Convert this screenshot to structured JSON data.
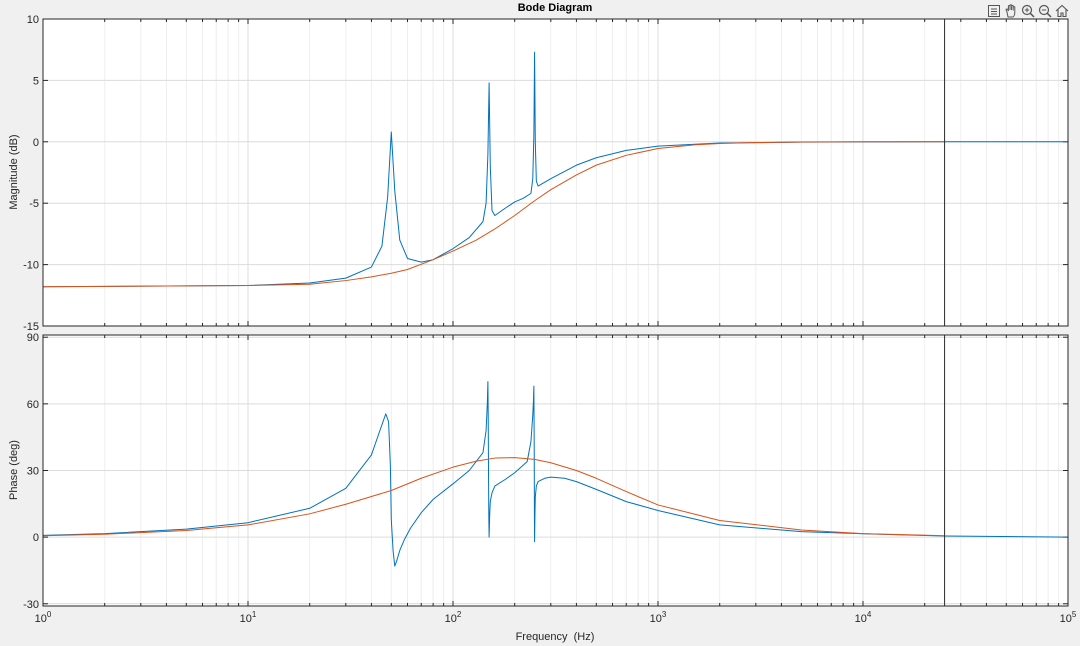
{
  "window": {
    "toolbar_icons": [
      "legend-toggle-icon",
      "pan-hand-icon",
      "zoom-in-icon",
      "zoom-out-icon",
      "home-icon"
    ]
  },
  "chart_data": [
    {
      "type": "line",
      "title": "Bode Diagram",
      "xlabel": "",
      "ylabel": "Magnitude (dB)",
      "xscale": "log",
      "xlim": [
        1,
        100000
      ],
      "ylim": [
        -15,
        10
      ],
      "yticks": [
        -15,
        -10,
        -5,
        0,
        5,
        10
      ],
      "grid": true,
      "vertical_line_x": 25000,
      "series": [
        {
          "color": "#0072bd",
          "x": [
            1,
            10,
            20,
            30,
            40,
            45,
            48,
            50,
            52,
            55,
            60,
            70,
            80,
            100,
            120,
            140,
            145,
            148,
            150,
            152,
            155,
            160,
            180,
            200,
            220,
            240,
            245,
            248,
            250,
            252,
            255,
            260,
            300,
            400,
            500,
            700,
            1000,
            2000,
            5000,
            10000,
            25000,
            100000
          ],
          "y": [
            -11.8,
            -11.7,
            -11.5,
            -11.1,
            -10.2,
            -8.5,
            -4.5,
            0.8,
            -4.0,
            -8.0,
            -9.5,
            -9.8,
            -9.6,
            -8.7,
            -7.8,
            -6.5,
            -5.0,
            -1.0,
            4.8,
            -2.0,
            -5.6,
            -6.0,
            -5.4,
            -4.9,
            -4.6,
            -4.2,
            -3.0,
            0.5,
            7.3,
            0.0,
            -3.2,
            -3.6,
            -3.0,
            -1.9,
            -1.3,
            -0.7,
            -0.35,
            -0.1,
            -0.03,
            -0.01,
            0.0,
            0.0
          ]
        },
        {
          "color": "#d95319",
          "x": [
            1,
            10,
            20,
            30,
            40,
            50,
            60,
            80,
            100,
            130,
            160,
            200,
            250,
            300,
            400,
            500,
            700,
            1000,
            1500,
            2000,
            3000,
            5000,
            10000,
            25000
          ],
          "y": [
            -11.8,
            -11.7,
            -11.6,
            -11.3,
            -11.0,
            -10.7,
            -10.4,
            -9.6,
            -8.9,
            -8.0,
            -7.1,
            -6.0,
            -4.8,
            -3.9,
            -2.7,
            -1.9,
            -1.1,
            -0.55,
            -0.25,
            -0.14,
            -0.06,
            -0.02,
            0.0,
            0.0
          ]
        }
      ]
    },
    {
      "type": "line",
      "title": "",
      "xlabel": "Frequency  (Hz)",
      "ylabel": "Phase (deg)",
      "xscale": "log",
      "xlim": [
        1,
        100000
      ],
      "ylim": [
        -31,
        91
      ],
      "yticks": [
        -30,
        0,
        30,
        60,
        90
      ],
      "grid": true,
      "vertical_line_x": 25000,
      "x_tick_labels": [
        "10^0",
        "10^1",
        "10^2",
        "10^3",
        "10^4",
        "10^5"
      ],
      "series": [
        {
          "color": "#0072bd",
          "x": [
            1,
            2,
            5,
            10,
            20,
            30,
            40,
            44,
            47,
            48.5,
            49.5,
            50,
            51,
            52,
            53,
            55,
            58,
            62,
            70,
            80,
            100,
            120,
            140,
            145,
            147,
            148,
            148.5,
            149,
            149.5,
            150,
            151,
            152,
            155,
            160,
            180,
            200,
            230,
            240,
            245,
            247,
            248,
            249,
            249.5,
            250,
            251,
            252,
            255,
            260,
            280,
            300,
            350,
            400,
            500,
            700,
            1000,
            2000,
            5000,
            10000,
            25000,
            100000
          ],
          "y": [
            0.8,
            1.6,
            3.6,
            6.5,
            13,
            22,
            37,
            48,
            55.5,
            52,
            32,
            8,
            -6,
            -13,
            -11,
            -6,
            -1,
            4,
            11,
            17,
            24,
            30,
            38,
            48,
            60,
            70,
            55,
            30,
            10,
            0,
            10,
            16,
            20,
            23,
            26,
            29,
            34,
            43,
            55,
            62,
            68,
            40,
            10,
            -2,
            10,
            18,
            23,
            25,
            26.5,
            27,
            26.5,
            25,
            21.5,
            16,
            12,
            5.5,
            2.5,
            1.5,
            0.5,
            0
          ]
        },
        {
          "color": "#d95319",
          "x": [
            1,
            2,
            5,
            10,
            20,
            30,
            50,
            70,
            100,
            130,
            160,
            200,
            250,
            300,
            400,
            500,
            700,
            1000,
            2000,
            5000,
            10000,
            25000
          ],
          "y": [
            0.6,
            1.3,
            3.0,
            5.5,
            10.5,
            14.8,
            21,
            26.5,
            31.5,
            34.2,
            35.6,
            35.8,
            35.0,
            33.5,
            30.0,
            26.5,
            20.5,
            14.5,
            7.5,
            3.2,
            1.6,
            0.6
          ]
        }
      ]
    }
  ]
}
